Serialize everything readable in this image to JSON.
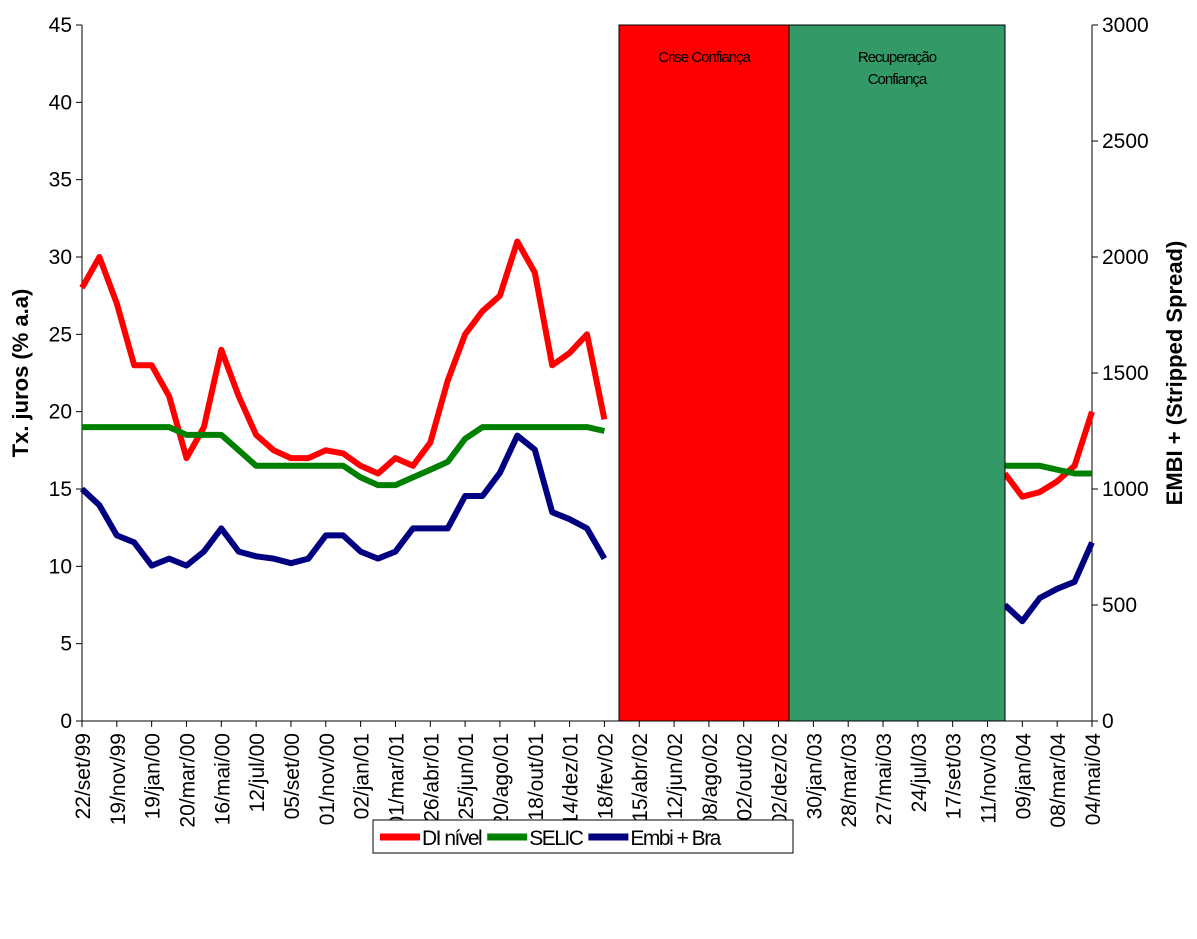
{
  "chart_data": {
    "type": "line",
    "categories": [
      "22/set/99",
      null,
      "19/nov/99",
      null,
      "19/jan/00",
      null,
      "20/mar/00",
      null,
      "16/mai/00",
      null,
      "12/jul/00",
      null,
      "05/set/00",
      null,
      "01/nov/00",
      null,
      "02/jan/01",
      null,
      "01/mar/01",
      null,
      "26/abr/01",
      null,
      "25/jun/01",
      null,
      "20/ago/01",
      null,
      "18/out/01",
      null,
      "14/dez/01",
      null,
      "18/fev/02",
      null,
      "15/abr/02",
      null,
      "12/jun/02",
      null,
      "08/ago/02",
      null,
      "02/out/02",
      null,
      "02/dez/02",
      null,
      "30/jan/03",
      null,
      "28/mar/03",
      null,
      "27/mai/03",
      null,
      "24/jul/03",
      null,
      "17/set/03",
      null,
      "11/nov/03",
      null,
      "09/jan/04",
      null,
      "08/mar/04",
      null,
      "04/mai/04"
    ],
    "series": [
      {
        "name": "DI nível",
        "color": "#ff0000",
        "values": [
          28,
          30,
          27,
          23,
          23,
          21,
          17,
          19,
          24,
          21,
          18.5,
          17.5,
          17,
          17,
          17.5,
          17.3,
          16.5,
          16,
          17,
          16.5,
          18,
          22,
          25,
          26.5,
          27.5,
          31,
          29,
          23,
          23.8,
          25,
          19.5,
          null,
          null,
          null,
          null,
          null,
          null,
          null,
          null,
          null,
          null,
          null,
          null,
          null,
          null,
          null,
          null,
          null,
          null,
          null,
          null,
          null,
          null,
          16,
          14.5,
          14.8,
          15.5,
          16.5,
          20
        ]
      },
      {
        "name": "SELIC",
        "color": "#008000",
        "values": [
          19,
          19,
          19,
          19,
          19,
          19,
          18.5,
          18.5,
          18.5,
          17.5,
          16.5,
          16.5,
          16.5,
          16.5,
          16.5,
          16.5,
          15.75,
          15.25,
          15.25,
          15.75,
          16.25,
          16.75,
          18.25,
          19,
          19,
          19,
          19,
          19,
          19,
          19,
          18.75,
          null,
          null,
          null,
          null,
          null,
          null,
          null,
          null,
          null,
          null,
          null,
          null,
          null,
          null,
          null,
          null,
          null,
          null,
          null,
          null,
          null,
          null,
          16.5,
          16.5,
          16.5,
          16.25,
          16,
          16
        ]
      },
      {
        "name": "Embi + Bra",
        "color": "#000080",
        "axis": "y2",
        "values": [
          1000,
          930,
          800,
          770,
          670,
          700,
          670,
          730,
          830,
          730,
          710,
          700,
          680,
          700,
          800,
          800,
          730,
          700,
          730,
          830,
          830,
          830,
          970,
          970,
          1070,
          1230,
          1170,
          900,
          870,
          830,
          700,
          null,
          null,
          null,
          null,
          null,
          null,
          null,
          null,
          null,
          null,
          null,
          null,
          null,
          null,
          null,
          null,
          null,
          null,
          null,
          null,
          null,
          null,
          500,
          430,
          530,
          570,
          600,
          770
        ]
      }
    ],
    "y_label": "Tx. juros (% a.a)",
    "y2_label": "EMBI + (Stripped Spread)",
    "ylim": [
      0,
      45
    ],
    "yticks": [
      0,
      5,
      10,
      15,
      20,
      25,
      30,
      35,
      40,
      45
    ],
    "y2lim": [
      0,
      3000
    ],
    "y2ticks": [
      0,
      500,
      1000,
      1500,
      2000,
      2500,
      3000
    ],
    "regions": [
      {
        "label": "Crise Confiança",
        "color": "#ff0000"
      },
      {
        "label": "Recuperação Confiança",
        "color": "#339966"
      }
    ],
    "legend": "bottom"
  }
}
